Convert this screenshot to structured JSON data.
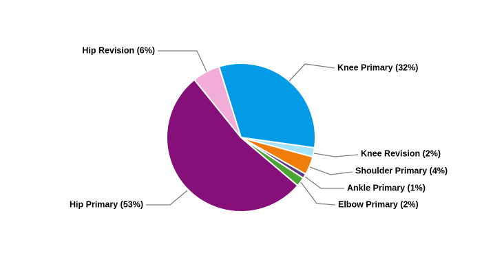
{
  "chart_data": {
    "type": "pie",
    "title": "",
    "start_angle_deg": 107.24,
    "direction": "clockwise",
    "slices": [
      {
        "label": "Knee Primary (32%)",
        "value": 32,
        "color": "#039be5"
      },
      {
        "label": "Knee Revision (2%)",
        "value": 2,
        "color": "#a7e4f7"
      },
      {
        "label": "Shoulder Primary (4%)",
        "value": 4,
        "color": "#f07c0a"
      },
      {
        "label": "Ankle Primary (1%)",
        "value": 1,
        "color": "#5c3a80"
      },
      {
        "label": "Elbow Primary (2%)",
        "value": 2,
        "color": "#4aa533"
      },
      {
        "label": "Hip Primary (53%)",
        "value": 53,
        "color": "#86107a"
      },
      {
        "label": "Hip Revision (6%)",
        "value": 6,
        "color": "#f2acd8"
      }
    ]
  }
}
